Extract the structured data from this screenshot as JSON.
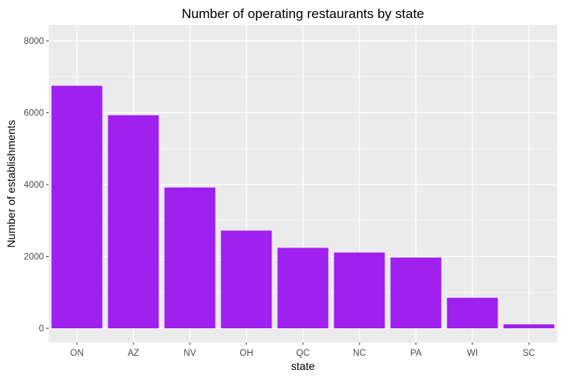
{
  "chart_data": {
    "type": "bar",
    "title": "Number of operating restaurants by state",
    "xlabel": "state",
    "ylabel": "Number of establishments",
    "categories": [
      "ON",
      "AZ",
      "NV",
      "OH",
      "QC",
      "NC",
      "PA",
      "WI",
      "SC"
    ],
    "values": [
      6750,
      5930,
      3920,
      2720,
      2240,
      2110,
      1970,
      850,
      110
    ],
    "ylim": [
      0,
      8400
    ],
    "yticks": [
      0,
      2000,
      4000,
      6000,
      8000
    ],
    "grid": true,
    "legend": "none",
    "bar_color": "#A020F0",
    "panel_color": "#EBEBEB",
    "gridline_color": "#FFFFFF",
    "tick_label_color": "#4D4D4D"
  }
}
